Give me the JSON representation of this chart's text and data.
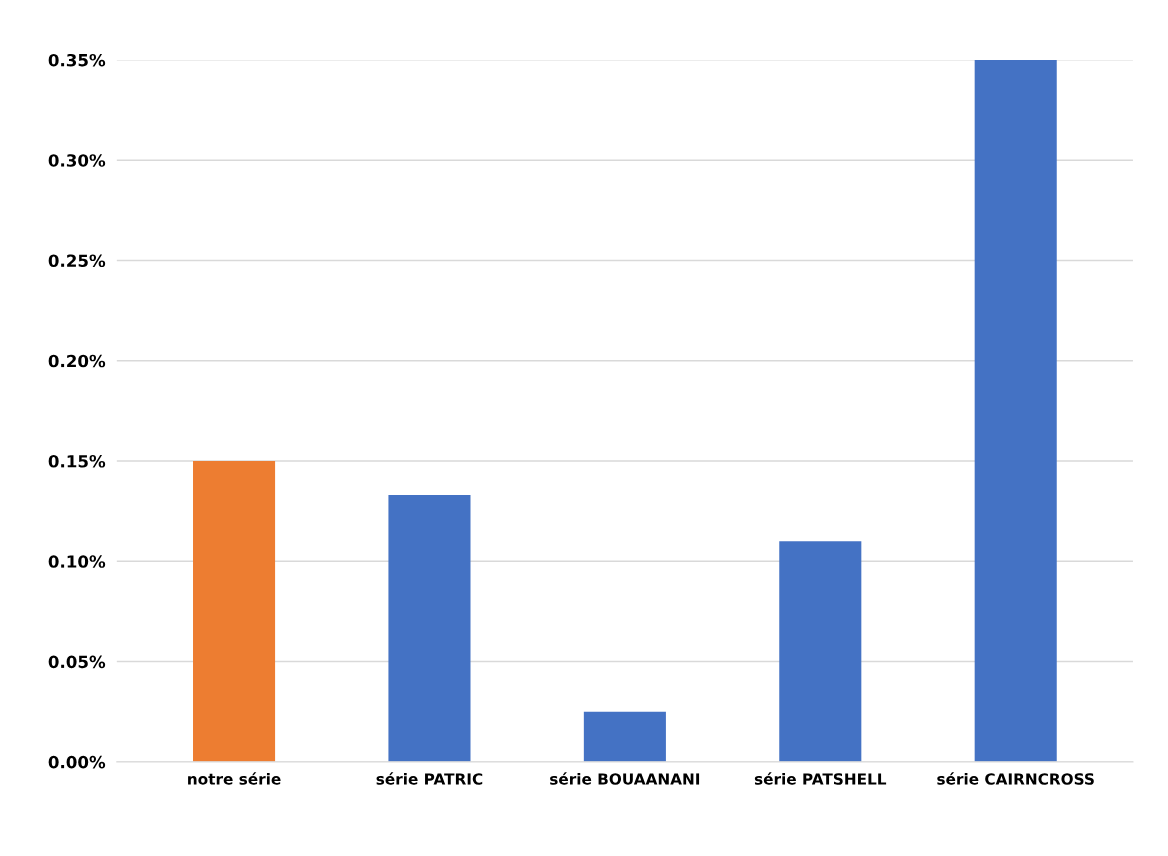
{
  "chart_data": {
    "type": "bar",
    "categories": [
      "notre série",
      "série PATRIC",
      "série BOUAANANI",
      "série PATSHELL",
      "série CAIRNCROSS"
    ],
    "values": [
      0.15,
      0.133,
      0.025,
      0.11,
      0.35
    ],
    "colors": [
      "#ed7d31",
      "#4472c4",
      "#4472c4",
      "#4472c4",
      "#4472c4"
    ],
    "ylim": [
      0,
      0.35
    ],
    "yticks": [
      {
        "value": 0,
        "label": "0.00%"
      },
      {
        "value": 0.05,
        "label": "0.05%"
      },
      {
        "value": 0.1,
        "label": "0.10%"
      },
      {
        "value": 0.15,
        "label": "0.15%"
      },
      {
        "value": 0.2,
        "label": "0.20%"
      },
      {
        "value": 0.25,
        "label": "0.25%"
      },
      {
        "value": 0.3,
        "label": "0.30%"
      },
      {
        "value": 0.35,
        "label": "0.35%"
      }
    ],
    "grid": "y"
  }
}
